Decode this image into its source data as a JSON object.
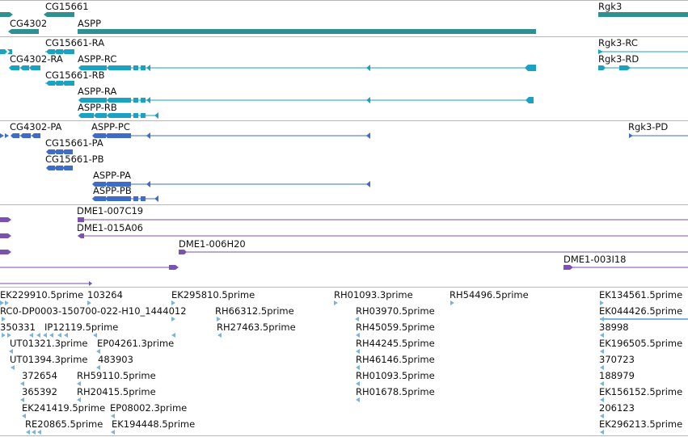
{
  "colors": {
    "gene": "#2e9090",
    "transcript": "#1aa2c2",
    "protein": "#3e6cc6",
    "clone": "#7a52b2",
    "est": "#7ab4de",
    "separator": "#b8b8b8"
  },
  "tracks": {
    "genes": {
      "labels": [
        "CG15661",
        "CG4302",
        "ASPP",
        "Rgk3"
      ]
    },
    "transcripts": {
      "labels": [
        "CG15661-RA",
        "CG4302-RA",
        "ASPP-RC",
        "CG15661-RB",
        "ASPP-RA",
        "ASPP-RB",
        "Rgk3-RC",
        "Rgk3-RD"
      ]
    },
    "proteins": {
      "labels": [
        "CG4302-PA",
        "ASPP-PC",
        "CG15661-PA",
        "CG15661-PB",
        "ASPP-PA",
        "ASPP-PB",
        "Rgk3-PD"
      ]
    },
    "clones": {
      "labels": [
        "DME1-007C19",
        "DME1-015A06",
        "DME1-006H20",
        "DME1-003I18"
      ]
    },
    "ests": {
      "labels": [
        "EK229910.5prime",
        "103264",
        "EK295810.5prime",
        "RH01093.3prime",
        "RH54496.5prime",
        "EK134561.5prime",
        "RC0-DP0003-150700-022-H10_1444012",
        "RH66312.5prime",
        "RH03970.5prime",
        "EK044426.5prime",
        "350331",
        "IP12119.5prime",
        "EP04261.3prime",
        "RH27463.5prime",
        "RH45059.5prime",
        "38998",
        "UT01321.3prime",
        "RH44245.5prime",
        "EK196505.5prime",
        "UT01394.3prime",
        "483903",
        "RH46146.5prime",
        "370723",
        "372654",
        "RH59110.5prime",
        "RH01093.5prime",
        "188979",
        "365392",
        "RH20415.5prime",
        "RH01678.5prime",
        "EK156152.5prime",
        "EK241419.5prime",
        "EP08002.3prime",
        "206123",
        "RE20865.5prime",
        "EK194448.5prime",
        "EK296213.5prime"
      ]
    }
  }
}
